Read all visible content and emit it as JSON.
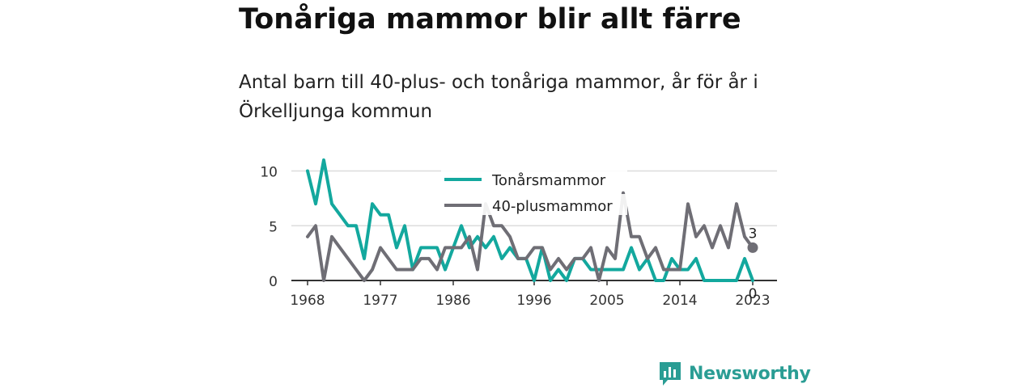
{
  "title": "Tonåriga mammor blir allt färre",
  "subtitle": "Antal barn till 40-plus- och tonåriga mammor, år för år i Örkelljunga kommun",
  "brand": {
    "name": "Newsworthy",
    "icon": "bar-chart-speech-bubble-icon",
    "color": "#2a9d94"
  },
  "chart_data": {
    "type": "line",
    "x": [
      1968,
      1969,
      1970,
      1971,
      1972,
      1973,
      1974,
      1975,
      1976,
      1977,
      1978,
      1979,
      1980,
      1981,
      1982,
      1983,
      1984,
      1985,
      1986,
      1987,
      1988,
      1989,
      1990,
      1991,
      1992,
      1993,
      1994,
      1995,
      1996,
      1997,
      1998,
      1999,
      2000,
      2001,
      2002,
      2003,
      2004,
      2005,
      2006,
      2007,
      2008,
      2009,
      2010,
      2011,
      2012,
      2013,
      2014,
      2015,
      2016,
      2017,
      2018,
      2019,
      2020,
      2021,
      2022,
      2023
    ],
    "series": [
      {
        "name": "Tonårsmammor",
        "color": "#13a89e",
        "values": [
          10,
          7,
          11,
          7,
          6,
          5,
          5,
          2,
          7,
          6,
          6,
          3,
          5,
          1,
          3,
          3,
          3,
          1,
          3,
          5,
          3,
          4,
          3,
          4,
          2,
          3,
          2,
          2,
          0,
          3,
          0,
          1,
          0,
          2,
          2,
          1,
          1,
          1,
          1,
          1,
          3,
          1,
          2,
          0,
          0,
          2,
          1,
          1,
          2,
          0,
          0,
          0,
          0,
          0,
          2,
          0
        ]
      },
      {
        "name": "40-plusmammor",
        "color": "#6f6e75",
        "values": [
          4,
          5,
          0,
          4,
          3,
          2,
          1,
          0,
          1,
          3,
          2,
          1,
          1,
          1,
          2,
          2,
          1,
          3,
          3,
          3,
          4,
          1,
          7,
          5,
          5,
          4,
          2,
          2,
          3,
          3,
          1,
          2,
          1,
          2,
          2,
          3,
          0,
          3,
          2,
          8,
          4,
          4,
          2,
          3,
          1,
          1,
          1,
          7,
          4,
          5,
          3,
          5,
          3,
          7,
          4,
          3
        ]
      }
    ],
    "xticks": [
      "1968",
      "1977",
      "1986",
      "1996",
      "2005",
      "2014",
      "2023"
    ],
    "yticks": [
      "0",
      "5",
      "10"
    ],
    "ylim": [
      0,
      11
    ],
    "end_labels": {
      "40-plusmammor": "3",
      "Tonårsmammor": "0"
    },
    "legend": [
      "Tonårsmammor",
      "40-plusmammor"
    ],
    "legend_position": "top-center",
    "grid": "horizontal"
  }
}
